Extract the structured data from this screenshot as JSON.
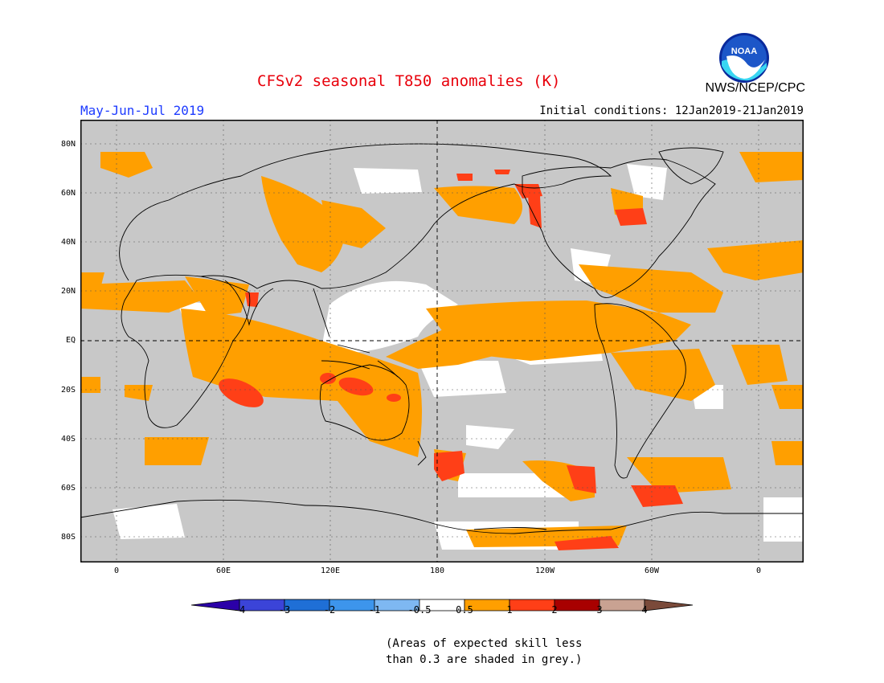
{
  "title": "CFSv2 seasonal T850 anomalies (K)",
  "period": "May-Jun-Jul 2019",
  "agency": "NWS/NCEP/CPC",
  "initial_conditions": "Initial conditions: 12Jan2019-21Jan2019",
  "logo_text": "NOAA",
  "lat_labels": [
    "80N",
    "60N",
    "40N",
    "20N",
    "EQ",
    "20S",
    "40S",
    "60S",
    "80S"
  ],
  "lon_labels": [
    "0",
    "60E",
    "120E",
    "180",
    "120W",
    "60W",
    "0"
  ],
  "colorbar": {
    "labels": [
      "-4",
      "-3",
      "-2",
      "-1",
      "-0.5",
      "0.5",
      "1",
      "2",
      "3",
      "4"
    ],
    "colors": [
      "#2b00a8",
      "#3b44d8",
      "#1f6fd6",
      "#3d95ec",
      "#7eb8f2",
      "#ffffff",
      "#ff9f00",
      "#ff3f17",
      "#a80000",
      "#c9a292",
      "#7a4a3a"
    ]
  },
  "legend_colors": {
    "grey": "#c8c8c8",
    "orange": "#ff9f00",
    "red": "#ff3f17",
    "white": "#ffffff"
  },
  "note_line1": "(Areas of expected skill less",
  "note_line2": "than 0.3 are shaded in grey.)"
}
